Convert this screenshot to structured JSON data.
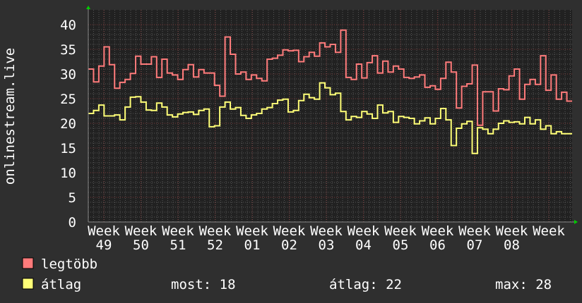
{
  "colors": {
    "background": "#2f2f2f",
    "plot_background": "#212121",
    "grid_minor": "#555555",
    "grid_major": "#7a3a3a",
    "axis_arrow": "#00cc00",
    "legtobb": "#ff7b7b",
    "atlag": "#ffff77",
    "text": "#ffffff"
  },
  "chart_data": {
    "type": "line",
    "step": true,
    "ylabel": "onlinestream.live",
    "ylim": [
      0,
      42
    ],
    "yticks": [
      0,
      5,
      10,
      15,
      20,
      25,
      30,
      35,
      40
    ],
    "xtick_labels": [
      "Week 49",
      "Week 50",
      "Week 51",
      "Week 52",
      "Week 01",
      "Week 02",
      "Week 03",
      "Week 04",
      "Week 05",
      "Week 06",
      "Week 07",
      "Week 08",
      "Week"
    ],
    "grid": true,
    "series": [
      {
        "name": "legtöbb",
        "color": "#ff7b7b",
        "values": [
          31,
          28.4,
          31.6,
          35.5,
          31.9,
          27.1,
          28.3,
          28.9,
          30.1,
          33.6,
          32,
          32,
          33.5,
          29.3,
          33,
          30.2,
          29.8,
          28.9,
          30.9,
          31.9,
          29.4,
          30.9,
          30.2,
          30.2,
          27.7,
          25.5,
          37.5,
          34,
          30,
          30.4,
          28.9,
          29.8,
          29.1,
          28.6,
          33,
          33.2,
          33.8,
          34.9,
          34.7,
          34.8,
          32.5,
          33.5,
          34.4,
          33.6,
          36.3,
          35.5,
          36,
          34.4,
          38.9,
          29.3,
          28.9,
          32,
          29.2,
          32.3,
          33.7,
          30.2,
          32.6,
          30.4,
          31.6,
          31,
          29.3,
          29.1,
          29.4,
          29.8,
          27.3,
          27.6,
          26.9,
          29.1,
          32.4,
          30.4,
          23.1,
          27.5,
          28,
          31.8,
          19.6,
          26.4,
          26.4,
          22.5,
          27,
          26.8,
          29.6,
          31,
          24.9,
          27.9,
          28.9,
          27.9,
          33.7,
          26.7,
          29.8,
          24.9,
          26.3,
          24.5
        ]
      },
      {
        "name": "átlag",
        "color": "#ffff77",
        "values": [
          22,
          22.6,
          23.7,
          21.5,
          21.5,
          21.7,
          20.7,
          23.3,
          25.3,
          25.4,
          24.3,
          22.7,
          22.6,
          24.1,
          23.3,
          21.7,
          21.3,
          21.9,
          22.2,
          22.3,
          21.8,
          22.6,
          22.9,
          19.3,
          19.5,
          23.3,
          24.3,
          22.9,
          23.2,
          21.6,
          21,
          21.7,
          22,
          22.9,
          23.2,
          24,
          24.7,
          24.9,
          22.3,
          22.6,
          24.6,
          25.9,
          25.2,
          24.9,
          28.2,
          27.2,
          25.8,
          26.1,
          22.4,
          20.7,
          21.4,
          21.2,
          22.4,
          21.9,
          21,
          23.7,
          22.1,
          22.4,
          20.2,
          21.4,
          21.2,
          21,
          19.9,
          20.5,
          21.1,
          19.9,
          21,
          23,
          20.7,
          15.5,
          19,
          19.9,
          20.4,
          13.9,
          19.1,
          18.8,
          17.9,
          18.8,
          20,
          20.5,
          20.2,
          20.3,
          19.9,
          21.2,
          19.9,
          20.7,
          18.8,
          19.5,
          17.9,
          18.3,
          17.9,
          17.9
        ]
      }
    ]
  },
  "legend": {
    "items": [
      {
        "label": "legtöbb",
        "color": "#ff7b7b"
      },
      {
        "label": "átlag",
        "color": "#ffff77"
      }
    ],
    "stats": {
      "most": "most: 18",
      "atlag": "átlag: 22",
      "max": "max: 28"
    }
  }
}
